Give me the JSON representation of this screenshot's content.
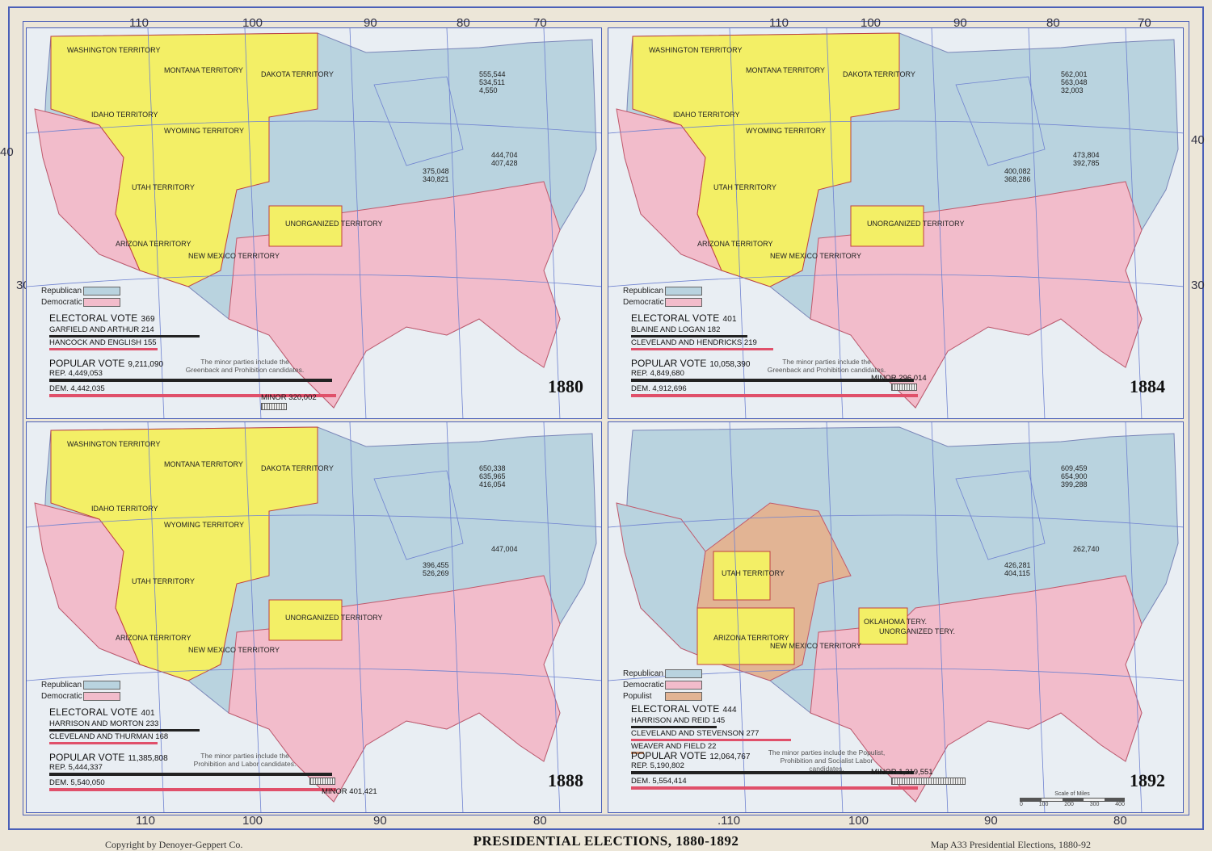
{
  "footer": {
    "title": "PRESIDENTIAL ELECTIONS, 1880-1892",
    "copyright": "Copyright by Denoyer-Geppert Co.",
    "map_ref": "Map A33 Presidential Elections, 1880-92"
  },
  "graticule": {
    "top_longitudes": [
      "110",
      "100",
      "90",
      "80",
      "70",
      "110",
      "100",
      "90",
      "80",
      "70"
    ],
    "bottom_longitudes": [
      "110",
      "100",
      "90",
      "80",
      ".110",
      "100",
      "90",
      "80"
    ],
    "latitudes": [
      "40",
      "30",
      "40",
      "30"
    ]
  },
  "colors": {
    "republican": "#b9d3df",
    "democratic": "#f2bccb",
    "populist": "#e2b494",
    "territory": "#f3ef66",
    "background": "#ece6d8",
    "border": "#4a5fb8"
  },
  "legend_labels": {
    "republican": "Republican",
    "democratic": "Democratic",
    "populist": "Populist"
  },
  "scale": {
    "label": "Scale of Miles",
    "ticks": [
      "0",
      "100",
      "200",
      "300",
      "400"
    ]
  },
  "panels": [
    {
      "year": "1880",
      "territories": [
        "WASHINGTON TERRITORY",
        "MONTANA TERRITORY",
        "DAKOTA TERRITORY",
        "IDAHO TERRITORY",
        "WYOMING TERRITORY",
        "UTAH TERRITORY",
        "ARIZONA TERRITORY",
        "NEW MEXICO TERRITORY",
        "UNORGANIZED TERRITORY"
      ],
      "electoral_label": "ELECTORAL VOTE",
      "electoral_total": "369",
      "candidates": [
        {
          "name": "GARFIELD AND ARTHUR",
          "votes": "214",
          "fraction": 0.58
        },
        {
          "name": "HANCOCK AND ENGLISH",
          "votes": "155",
          "fraction": 0.42
        }
      ],
      "popular_label": "POPULAR VOTE",
      "popular_total": "9,211,090",
      "rep_label": "REP.",
      "rep_votes": "4,449,053",
      "dem_label": "DEM.",
      "dem_votes": "4,442,035",
      "minor_label": "MINOR 320,002",
      "note": "The minor parties include the Greenback and Prohibition candidates.",
      "sample_returns": [
        "555,544",
        "534,511",
        "4,550",
        "375,048",
        "340,821",
        "444,704",
        "407,428"
      ]
    },
    {
      "year": "1884",
      "territories": [
        "WASHINGTON TERRITORY",
        "MONTANA TERRITORY",
        "DAKOTA TERRITORY",
        "IDAHO TERRITORY",
        "WYOMING TERRITORY",
        "UTAH TERRITORY",
        "ARIZONA TERRITORY",
        "NEW MEXICO TERRITORY",
        "UNORGANIZED TERRITORY"
      ],
      "electoral_label": "ELECTORAL VOTE",
      "electoral_total": "401",
      "candidates": [
        {
          "name": "BLAINE AND LOGAN",
          "votes": "182",
          "fraction": 0.45
        },
        {
          "name": "CLEVELAND AND HENDRICKS",
          "votes": "219",
          "fraction": 0.55
        }
      ],
      "popular_label": "POPULAR VOTE",
      "popular_total": "10,058,390",
      "rep_label": "REP.",
      "rep_votes": "4,849,680",
      "dem_label": "DEM.",
      "dem_votes": "4,912,696",
      "minor_label": "MINOR 296,014",
      "note": "The minor parties include the Greenback and Prohibition candidates.",
      "sample_returns": [
        "562,001",
        "563,048",
        "32,003",
        "400,082",
        "368,286",
        "473,804",
        "392,785"
      ]
    },
    {
      "year": "1888",
      "territories": [
        "WASHINGTON TERRITORY",
        "MONTANA TERRITORY",
        "DAKOTA TERRITORY",
        "IDAHO TERRITORY",
        "WYOMING TERRITORY",
        "UTAH TERRITORY",
        "ARIZONA TERRITORY",
        "NEW MEXICO TERRITORY",
        "UNORGANIZED TERRITORY"
      ],
      "electoral_label": "ELECTORAL VOTE",
      "electoral_total": "401",
      "candidates": [
        {
          "name": "HARRISON AND MORTON",
          "votes": "233",
          "fraction": 0.58
        },
        {
          "name": "CLEVELAND AND THURMAN",
          "votes": "168",
          "fraction": 0.42
        }
      ],
      "popular_label": "POPULAR VOTE",
      "popular_total": "11,385,808",
      "rep_label": "REP.",
      "rep_votes": "5,444,337",
      "dem_label": "DEM.",
      "dem_votes": "5,540,050",
      "minor_label": "MINOR 401,421",
      "note": "The minor parties include the Prohibition and Labor candidates.",
      "sample_returns": [
        "650,338",
        "635,965",
        "416,054",
        "396,455",
        "526,269",
        "447,004"
      ]
    },
    {
      "year": "1892",
      "territories": [
        "UTAH TERRITORY",
        "ARIZONA TERRITORY",
        "NEW MEXICO TERRITORY",
        "OKLAHOMA TERY.",
        "UNORGANIZED TERY."
      ],
      "electoral_label": "ELECTORAL VOTE",
      "electoral_total": "444",
      "candidates": [
        {
          "name": "HARRISON AND REID",
          "votes": "145",
          "fraction": 0.33
        },
        {
          "name": "CLEVELAND AND STEVENSON",
          "votes": "277",
          "fraction": 0.62
        },
        {
          "name": "WEAVER AND FIELD",
          "votes": "22",
          "fraction": 0.05
        }
      ],
      "popular_label": "POPULAR VOTE",
      "popular_total": "12,064,767",
      "rep_label": "REP.",
      "rep_votes": "5,190,802",
      "dem_label": "DEM.",
      "dem_votes": "5,554,414",
      "minor_label": "MINOR 1,319,551",
      "note": "The minor parties include the Populist, Prohibition and Socialist Labor candidates.",
      "sample_returns": [
        "609,459",
        "654,900",
        "399,288",
        "426,281",
        "404,115",
        "262,740"
      ]
    }
  ]
}
